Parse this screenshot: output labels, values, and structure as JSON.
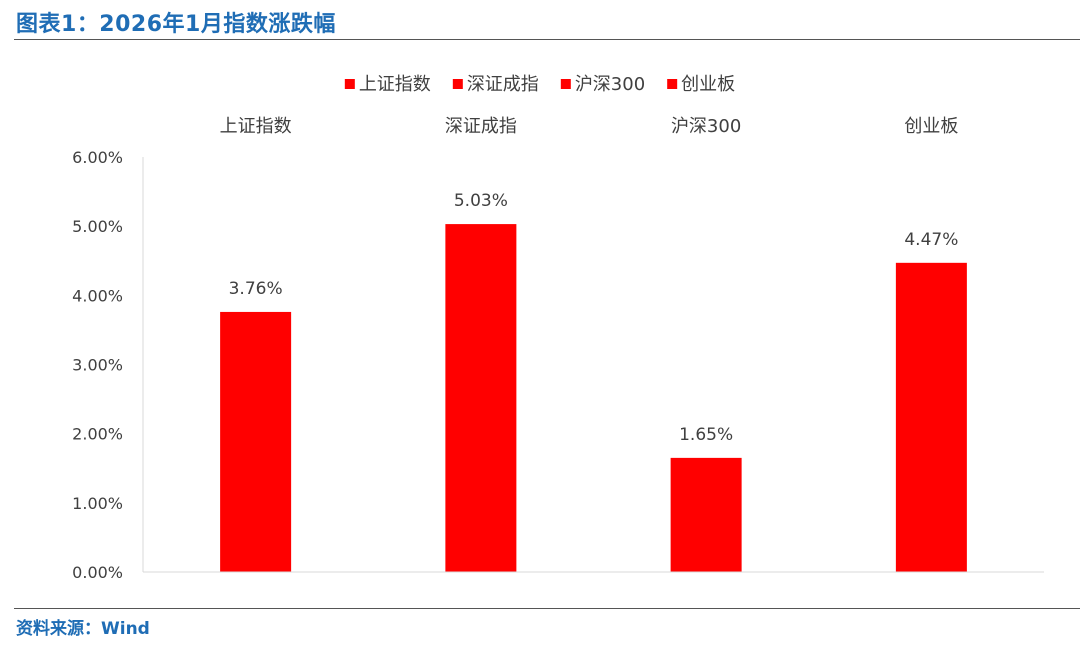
{
  "header": {
    "title": "图表1：2026年1月指数涨跌幅"
  },
  "footer": {
    "source": "资料来源：Wind"
  },
  "chart_data": {
    "type": "bar",
    "categories": [
      "上证指数",
      "深证成指",
      "沪深300",
      "创业板"
    ],
    "values": [
      3.76,
      5.03,
      1.65,
      4.47
    ],
    "value_labels": [
      "3.76%",
      "5.03%",
      "1.65%",
      "4.47%"
    ],
    "legend": [
      "上证指数",
      "深证成指",
      "沪深300",
      "创业板"
    ],
    "legend_position": "top",
    "category_labels_position": "top",
    "ylim": [
      0,
      6
    ],
    "yticks": [
      0,
      1,
      2,
      3,
      4,
      5,
      6
    ],
    "ytick_labels": [
      "0.00%",
      "1.00%",
      "2.00%",
      "3.00%",
      "4.00%",
      "5.00%",
      "6.00%"
    ],
    "grid": false,
    "bar_color": "#ff0000"
  }
}
